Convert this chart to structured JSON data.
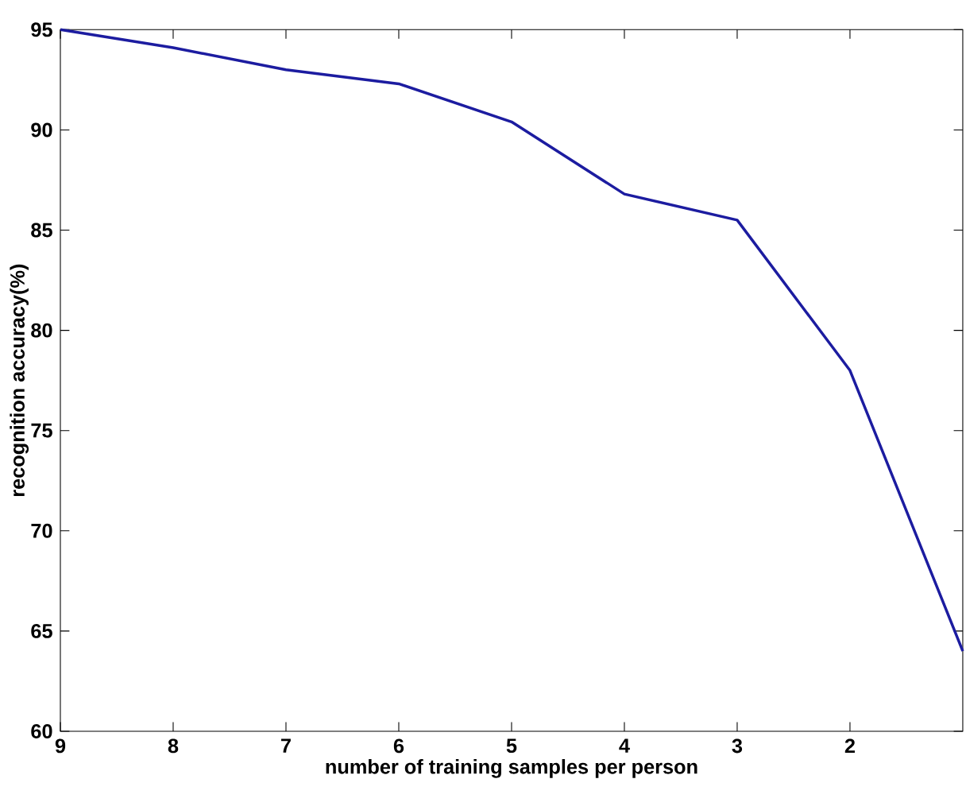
{
  "chart_data": {
    "type": "line",
    "xlabel": "number of training samples per person",
    "ylabel": "recognition accuracy(%)",
    "x": [
      9,
      8,
      7,
      6,
      5,
      4,
      3,
      2,
      1
    ],
    "series": [
      {
        "color": "#1c1ca0",
        "values": [
          95,
          94.1,
          93,
          92.3,
          90.4,
          86.8,
          85.5,
          78,
          64
        ]
      }
    ],
    "xlim": [
      9,
      1
    ],
    "xticks": [
      9,
      8,
      7,
      6,
      5,
      4,
      3,
      2
    ],
    "ylim": [
      60,
      95
    ],
    "yticks": [
      60,
      65,
      70,
      75,
      80,
      85,
      90,
      95
    ],
    "grid": false,
    "marker": "none",
    "line_style": "solid"
  }
}
